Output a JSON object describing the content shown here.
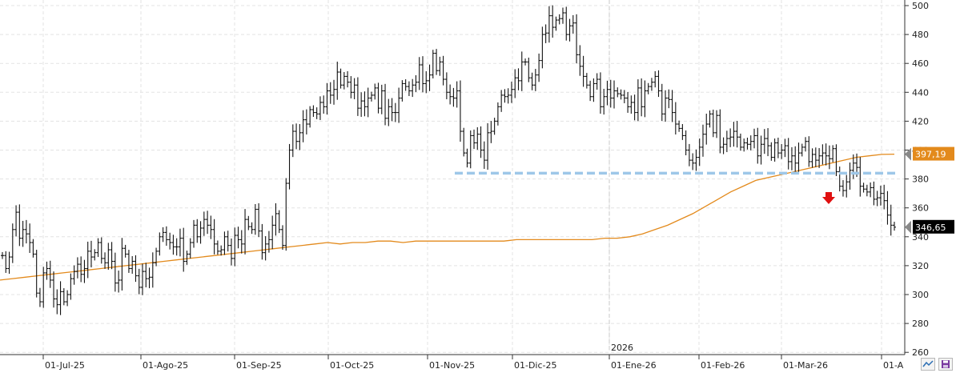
{
  "chart_data": {
    "type": "ohlc",
    "y_axis": {
      "ticks": [
        "500",
        "480",
        "460",
        "440",
        "420",
        "400",
        "380",
        "360",
        "340",
        "320",
        "300",
        "280",
        "260"
      ],
      "ylim": [
        260,
        505
      ],
      "position": "right"
    },
    "x_axis": {
      "ticks": [
        "01-Jul-25",
        "01-Ago-25",
        "01-Sep-25",
        "01-Oct-25",
        "01-Nov-25",
        "01-Dic-25",
        "01-Ene-26",
        "01-Feb-26",
        "01-Mar-26",
        "01-A"
      ],
      "year_marker": "2026"
    },
    "price_close_series": [
      327,
      318,
      326,
      345,
      357,
      339,
      345,
      342,
      336,
      328,
      301,
      295,
      315,
      318,
      310,
      297,
      293,
      302,
      295,
      300,
      311,
      316,
      321,
      314,
      318,
      330,
      326,
      329,
      336,
      325,
      322,
      331,
      323,
      308,
      310,
      332,
      328,
      318,
      323,
      313,
      305,
      316,
      311,
      312,
      322,
      330,
      340,
      343,
      338,
      336,
      333,
      333,
      339,
      323,
      328,
      336,
      348,
      340,
      346,
      352,
      348,
      345,
      335,
      330,
      331,
      340,
      334,
      325,
      341,
      338,
      335,
      352,
      347,
      345,
      359,
      344,
      329,
      335,
      338,
      348,
      356,
      345,
      334,
      377,
      400,
      413,
      406,
      412,
      421,
      418,
      428,
      426,
      425,
      433,
      430,
      441,
      438,
      442,
      454,
      445,
      451,
      447,
      440,
      445,
      429,
      434,
      430,
      436,
      438,
      443,
      429,
      441,
      422,
      430,
      426,
      426,
      436,
      446,
      444,
      441,
      445,
      447,
      459,
      446,
      448,
      452,
      467,
      455,
      461,
      449,
      440,
      437,
      436,
      441,
      413,
      398,
      391,
      410,
      405,
      411,
      400,
      393,
      412,
      413,
      420,
      430,
      438,
      437,
      438,
      442,
      450,
      448,
      461,
      461,
      450,
      445,
      452,
      462,
      480,
      481,
      493,
      485,
      490,
      491,
      495,
      480,
      486,
      488,
      466,
      458,
      451,
      445,
      437,
      446,
      449,
      430,
      437,
      442,
      436,
      441,
      439,
      438,
      436,
      430,
      433,
      426,
      443,
      430,
      441,
      444,
      447,
      451,
      441,
      425,
      436,
      435,
      426,
      418,
      415,
      410,
      400,
      393,
      391,
      395,
      402,
      411,
      418,
      425,
      412,
      424,
      402,
      404,
      408,
      409,
      413,
      409,
      402,
      405,
      404,
      406,
      410,
      396,
      404,
      408,
      403,
      395,
      405,
      398,
      400,
      403,
      392,
      396,
      391,
      398,
      402,
      406,
      392,
      397,
      393,
      396,
      398,
      396,
      394,
      401,
      385,
      375,
      372,
      378,
      386,
      391,
      388,
      375,
      373,
      371,
      374,
      366,
      367,
      370,
      365,
      355,
      348,
      346.65
    ],
    "moving_average": {
      "color": "#e38a1c",
      "series_y": [
        310,
        311,
        312,
        313,
        314,
        315,
        316,
        317,
        318,
        319,
        320,
        321,
        322,
        323,
        324,
        325,
        326,
        327,
        328,
        329,
        330,
        331,
        332,
        333,
        334,
        335,
        336,
        335,
        336,
        336,
        337,
        337,
        336,
        337,
        337,
        337,
        337,
        337,
        337,
        337,
        337,
        338,
        338,
        338,
        338,
        338,
        338,
        338,
        339,
        339,
        340,
        342,
        345,
        348,
        352,
        356,
        361,
        366,
        371,
        375,
        379,
        381,
        383,
        385,
        387,
        389,
        391,
        393,
        395,
        396,
        397,
        397.19
      ]
    },
    "support_line": {
      "value": 384,
      "color": "#9ec7e8",
      "style": "dashed"
    },
    "signal_arrow": {
      "direction": "down",
      "color": "#e01010"
    },
    "last_price_label": {
      "text": "346,65",
      "value": 346.65,
      "color": "#000000"
    },
    "ma_label": {
      "text": "397,19",
      "value": 397.19,
      "color": "#e38a1c"
    },
    "grid": true
  },
  "toolbar": {
    "chart_type_icon": "line-chart-icon",
    "save_icon": "save-icon"
  }
}
